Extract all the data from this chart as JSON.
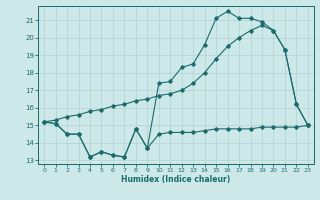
{
  "background_color": "#cde8e8",
  "grid_color": "#b8d4d4",
  "line_color": "#1a6b6b",
  "xlabel": "Humidex (Indice chaleur)",
  "xlim": [
    -0.5,
    23.5
  ],
  "ylim": [
    12.8,
    21.8
  ],
  "yticks": [
    13,
    14,
    15,
    16,
    17,
    18,
    19,
    20,
    21
  ],
  "xticks": [
    0,
    1,
    2,
    3,
    4,
    5,
    6,
    7,
    8,
    9,
    10,
    11,
    12,
    13,
    14,
    15,
    16,
    17,
    18,
    19,
    20,
    21,
    22,
    23
  ],
  "line1_x": [
    0,
    1,
    2,
    3,
    4,
    5,
    6,
    7,
    8,
    9,
    10,
    11,
    12,
    13,
    14,
    15,
    16,
    17,
    18,
    19,
    20,
    21,
    22,
    23
  ],
  "line1_y": [
    15.2,
    15.1,
    14.5,
    14.5,
    13.2,
    13.5,
    13.3,
    13.2,
    14.8,
    13.7,
    14.5,
    14.6,
    14.6,
    14.6,
    14.7,
    14.8,
    14.8,
    14.8,
    14.8,
    14.9,
    14.9,
    14.9,
    14.9,
    15.0
  ],
  "line2_x": [
    0,
    1,
    2,
    3,
    4,
    5,
    6,
    7,
    8,
    9,
    10,
    11,
    12,
    13,
    14,
    15,
    16,
    17,
    18,
    19,
    20,
    21,
    22,
    23
  ],
  "line2_y": [
    15.2,
    15.1,
    14.5,
    14.5,
    13.2,
    13.5,
    13.3,
    13.2,
    14.8,
    13.7,
    17.4,
    17.5,
    18.3,
    18.5,
    19.6,
    21.1,
    21.5,
    21.1,
    21.1,
    20.9,
    20.4,
    19.3,
    16.2,
    15.0
  ],
  "line3_x": [
    0,
    1,
    2,
    3,
    4,
    5,
    6,
    7,
    8,
    9,
    10,
    11,
    12,
    13,
    14,
    15,
    16,
    17,
    18,
    19,
    20,
    21,
    22,
    23
  ],
  "line3_y": [
    15.2,
    15.3,
    15.5,
    15.6,
    15.8,
    15.9,
    16.1,
    16.2,
    16.4,
    16.5,
    16.7,
    16.8,
    17.0,
    17.4,
    18.0,
    18.8,
    19.5,
    20.0,
    20.4,
    20.7,
    20.4,
    19.3,
    16.2,
    15.0
  ]
}
